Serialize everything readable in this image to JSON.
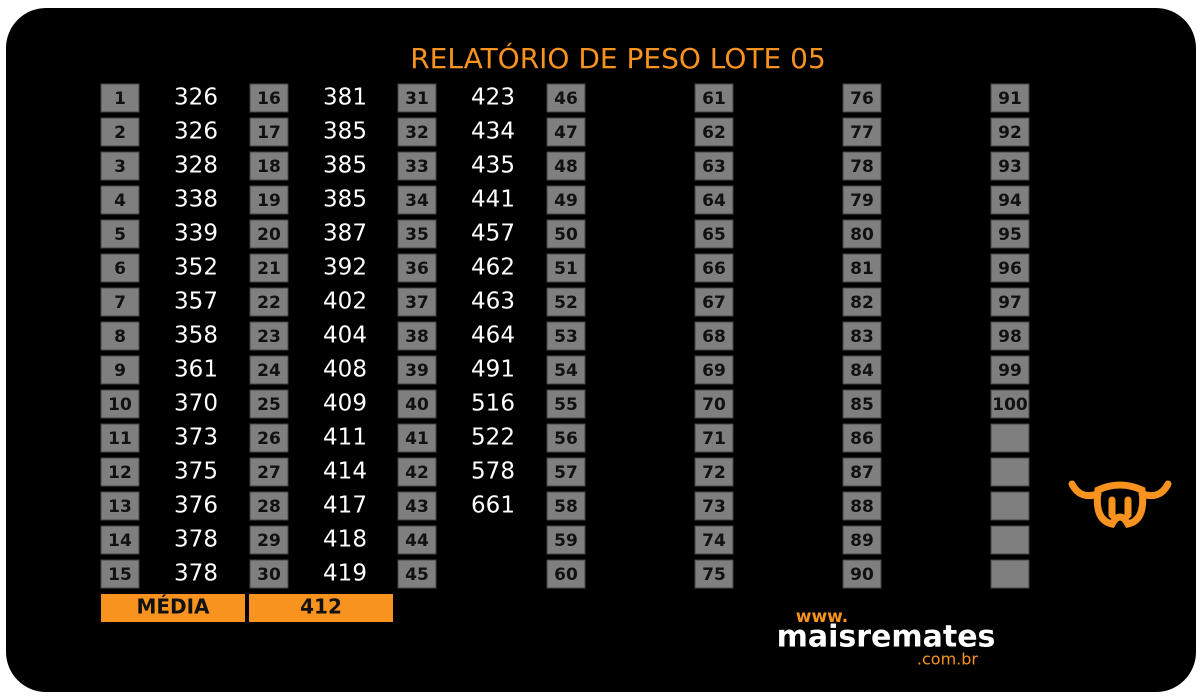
{
  "title": "RELATÓRIO DE PESO LOTE 05",
  "entries": [
    {
      "number": 1,
      "weight": 326
    },
    {
      "number": 2,
      "weight": 326
    },
    {
      "number": 3,
      "weight": 328
    },
    {
      "number": 4,
      "weight": 338
    },
    {
      "number": 5,
      "weight": 339
    },
    {
      "number": 6,
      "weight": 352
    },
    {
      "number": 7,
      "weight": 357
    },
    {
      "number": 8,
      "weight": 358
    },
    {
      "number": 9,
      "weight": 361
    },
    {
      "number": 10,
      "weight": 370
    },
    {
      "number": 11,
      "weight": 373
    },
    {
      "number": 12,
      "weight": 375
    },
    {
      "number": 13,
      "weight": 376
    },
    {
      "number": 14,
      "weight": 378
    },
    {
      "number": 15,
      "weight": 378
    },
    {
      "number": 16,
      "weight": 381
    },
    {
      "number": 17,
      "weight": 385
    },
    {
      "number": 18,
      "weight": 385
    },
    {
      "number": 19,
      "weight": 385
    },
    {
      "number": 20,
      "weight": 387
    },
    {
      "number": 21,
      "weight": 392
    },
    {
      "number": 22,
      "weight": 402
    },
    {
      "number": 23,
      "weight": 404
    },
    {
      "number": 24,
      "weight": 408
    },
    {
      "number": 25,
      "weight": 409
    },
    {
      "number": 26,
      "weight": 411
    },
    {
      "number": 27,
      "weight": 414
    },
    {
      "number": 28,
      "weight": 417
    },
    {
      "number": 29,
      "weight": 418
    },
    {
      "number": 30,
      "weight": 419
    },
    {
      "number": 31,
      "weight": 423
    },
    {
      "number": 32,
      "weight": 434
    },
    {
      "number": 33,
      "weight": 435
    },
    {
      "number": 34,
      "weight": 441
    },
    {
      "number": 35,
      "weight": 457
    },
    {
      "number": 36,
      "weight": 462
    },
    {
      "number": 37,
      "weight": 463
    },
    {
      "number": 38,
      "weight": 464
    },
    {
      "number": 39,
      "weight": 491
    },
    {
      "number": 40,
      "weight": 516
    },
    {
      "number": 41,
      "weight": 522
    },
    {
      "number": 42,
      "weight": 578
    },
    {
      "number": 43,
      "weight": 661
    },
    {
      "number": 44
    },
    {
      "number": 45
    },
    {
      "number": 46
    },
    {
      "number": 47
    },
    {
      "number": 48
    },
    {
      "number": 49
    },
    {
      "number": 50
    },
    {
      "number": 51
    },
    {
      "number": 52
    },
    {
      "number": 53
    },
    {
      "number": 54
    },
    {
      "number": 55
    },
    {
      "number": 56
    },
    {
      "number": 57
    },
    {
      "number": 58
    },
    {
      "number": 59
    },
    {
      "number": 60
    },
    {
      "number": 61
    },
    {
      "number": 62
    },
    {
      "number": 63
    },
    {
      "number": 64
    },
    {
      "number": 65
    },
    {
      "number": 66
    },
    {
      "number": 67
    },
    {
      "number": 68
    },
    {
      "number": 69
    },
    {
      "number": 70
    },
    {
      "number": 71
    },
    {
      "number": 72
    },
    {
      "number": 73
    },
    {
      "number": 74
    },
    {
      "number": 75
    },
    {
      "number": 76
    },
    {
      "number": 77
    },
    {
      "number": 78
    },
    {
      "number": 79
    },
    {
      "number": 80
    },
    {
      "number": 81
    },
    {
      "number": 82
    },
    {
      "number": 83
    },
    {
      "number": 84
    },
    {
      "number": 85
    },
    {
      "number": 86
    },
    {
      "number": 87
    },
    {
      "number": 88
    },
    {
      "number": 89
    },
    {
      "number": 90
    },
    {
      "number": 91
    },
    {
      "number": 92
    },
    {
      "number": 93
    },
    {
      "number": 94
    },
    {
      "number": 95
    },
    {
      "number": 96
    },
    {
      "number": 97
    },
    {
      "number": 98
    },
    {
      "number": 99
    },
    {
      "number": 100
    }
  ],
  "average": {
    "label": "MÉDIA",
    "value": 412
  },
  "logo": {
    "prefix": "www.",
    "name": "maisremates",
    "suffix": ".com.br"
  }
}
